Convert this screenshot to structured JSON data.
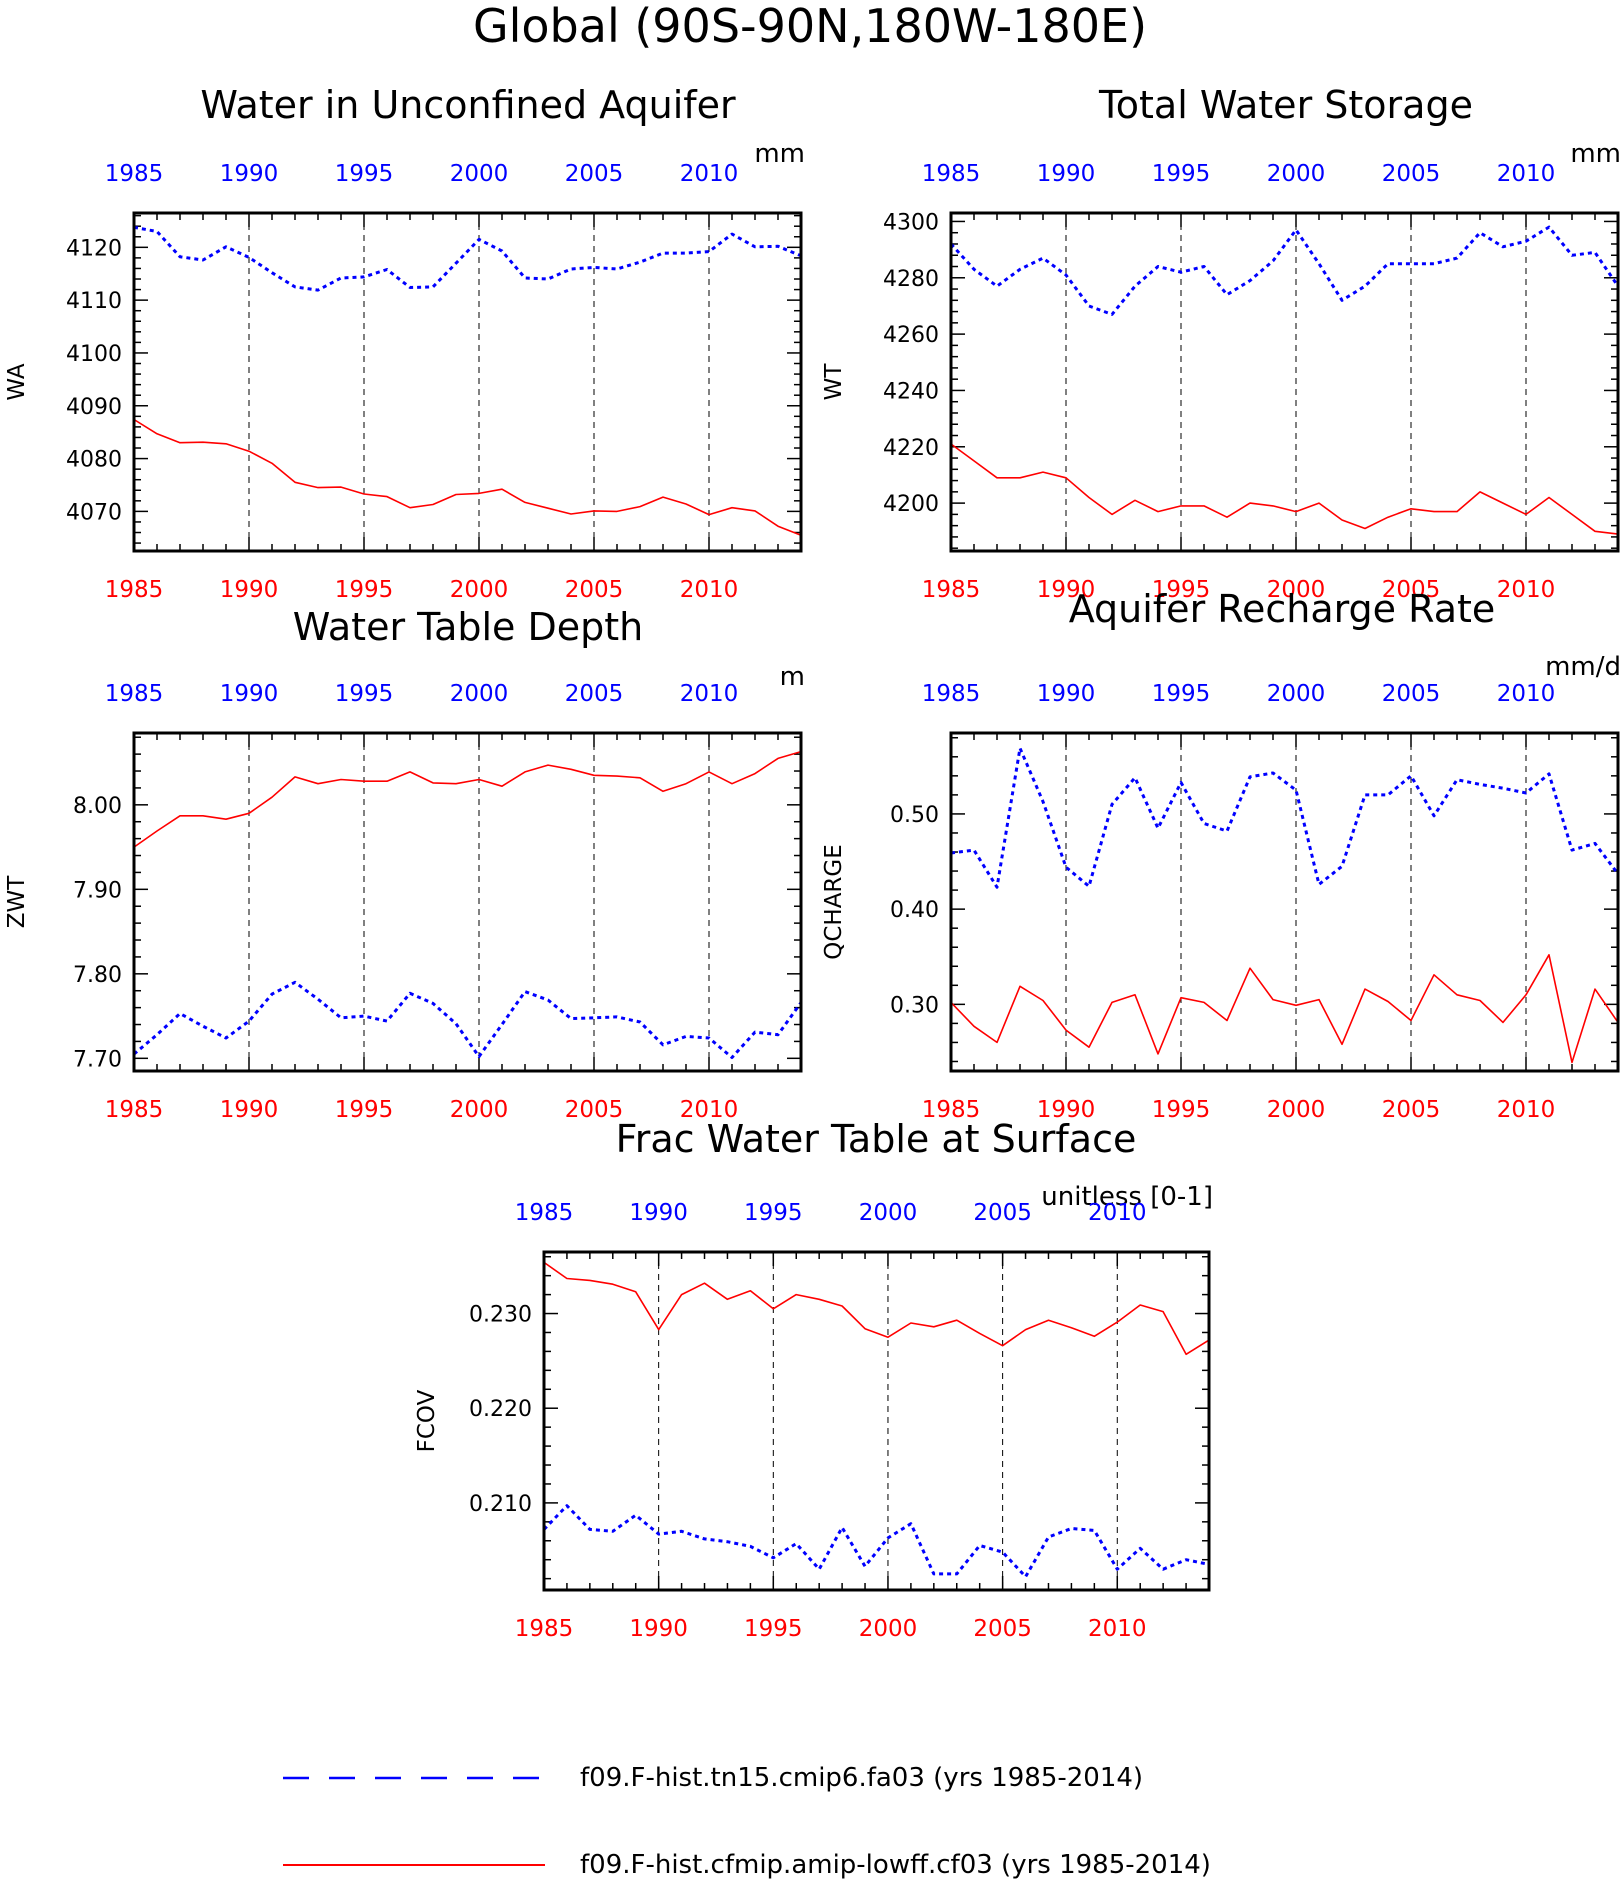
{
  "page_title": "Global (90S-90N,180W-180E)",
  "colors": {
    "series_a": "#0000ff",
    "series_b": "#ff0000",
    "frame": "#000000"
  },
  "legend": {
    "position": "bottom",
    "items": [
      {
        "label": "f09.F-hist.tn15.cmip6.fa03 (yrs 1985-2014)",
        "color": "#0000ff",
        "style": "dashed"
      },
      {
        "label": "f09.F-hist.cfmip.amip-lowff.cf03 (yrs 1985-2014)",
        "color": "#ff0000",
        "style": "solid"
      }
    ]
  },
  "chart_data": [
    {
      "type": "line",
      "title": "Water in Unconfined Aquifer",
      "ylabel": "WA",
      "units": "mm",
      "xlim": [
        1985,
        2014
      ],
      "ylim": [
        4062.5,
        4126.5
      ],
      "yticks": [
        4070,
        4080,
        4090,
        4100,
        4110,
        4120
      ],
      "yticklabels": [
        "4070",
        "4080",
        "4090",
        "4100",
        "4110",
        "4120"
      ],
      "xticks": [
        1985,
        1990,
        1995,
        2000,
        2005,
        2010
      ],
      "grid": "vertical-dashed",
      "x": [
        1985,
        1986,
        1987,
        1988,
        1989,
        1990,
        1991,
        1992,
        1993,
        1994,
        1995,
        1996,
        1997,
        1998,
        1999,
        2000,
        2001,
        2002,
        2003,
        2004,
        2005,
        2006,
        2007,
        2008,
        2009,
        2010,
        2011,
        2012,
        2013,
        2014
      ],
      "series": [
        {
          "color": "#0000ff",
          "style": "dashed",
          "values": [
            4123.8,
            4123.0,
            4118.2,
            4117.6,
            4120.1,
            4118.1,
            4115.2,
            4112.5,
            4111.9,
            4114.2,
            4114.4,
            4115.8,
            4112.4,
            4112.5,
            4117.0,
            4121.5,
            4119.3,
            4114.2,
            4114.0,
            4115.9,
            4116.2,
            4115.9,
            4117.2,
            4118.9,
            4118.9,
            4119.2,
            4122.5,
            4120.1,
            4120.2,
            4118.4
          ]
        },
        {
          "color": "#ff0000",
          "style": "solid",
          "values": [
            4087.4,
            4084.7,
            4083.0,
            4083.1,
            4082.8,
            4081.4,
            4079.1,
            4075.5,
            4074.5,
            4074.6,
            4073.3,
            4072.8,
            4070.7,
            4071.3,
            4073.2,
            4073.4,
            4074.2,
            4071.7,
            4070.6,
            4069.5,
            4070.1,
            4070.0,
            4070.9,
            4072.7,
            4071.4,
            4069.4,
            4070.7,
            4070.1,
            4067.2,
            4065.5
          ]
        }
      ]
    },
    {
      "type": "line",
      "title": "Total Water Storage",
      "ylabel": "WT",
      "units": "mm",
      "xlim": [
        1985,
        2014
      ],
      "ylim": [
        4183,
        4303
      ],
      "yticks": [
        4200,
        4220,
        4240,
        4260,
        4280,
        4300
      ],
      "yticklabels": [
        "4200",
        "4220",
        "4240",
        "4260",
        "4280",
        "4300"
      ],
      "xticks": [
        1985,
        1990,
        1995,
        2000,
        2005,
        2010
      ],
      "grid": "vertical-dashed",
      "x": [
        1985,
        1986,
        1987,
        1988,
        1989,
        1990,
        1991,
        1992,
        1993,
        1994,
        1995,
        1996,
        1997,
        1998,
        1999,
        2000,
        2001,
        2002,
        2003,
        2004,
        2005,
        2006,
        2007,
        2008,
        2009,
        2010,
        2011,
        2012,
        2013,
        2014
      ],
      "series": [
        {
          "color": "#0000ff",
          "style": "dashed",
          "values": [
            4292,
            4283,
            4277,
            4283,
            4287,
            4281,
            4270,
            4267,
            4277,
            4284,
            4282,
            4284,
            4274,
            4279,
            4286,
            4297,
            4285,
            4272,
            4277,
            4285,
            4285,
            4285,
            4287,
            4296,
            4291,
            4293,
            4298,
            4288,
            4289,
            4277
          ]
        },
        {
          "color": "#ff0000",
          "style": "solid",
          "values": [
            4221,
            4215,
            4209,
            4209,
            4211,
            4209,
            4202,
            4196,
            4201,
            4197,
            4199,
            4199,
            4195,
            4200,
            4199,
            4197,
            4200,
            4194,
            4191,
            4195,
            4198,
            4197,
            4197,
            4204,
            4200,
            4196,
            4202,
            4196,
            4190,
            4189
          ]
        }
      ]
    },
    {
      "type": "line",
      "title": "Water Table Depth",
      "ylabel": "ZWT",
      "units": "m",
      "xlim": [
        1985,
        2014
      ],
      "ylim": [
        7.685,
        8.085
      ],
      "yticks": [
        7.7,
        7.8,
        7.9,
        8.0
      ],
      "yticklabels": [
        "7.70",
        "7.80",
        "7.90",
        "8.00"
      ],
      "xticks": [
        1985,
        1990,
        1995,
        2000,
        2005,
        2010
      ],
      "grid": "vertical-dashed",
      "x": [
        1985,
        1986,
        1987,
        1988,
        1989,
        1990,
        1991,
        1992,
        1993,
        1994,
        1995,
        1996,
        1997,
        1998,
        1999,
        2000,
        2001,
        2002,
        2003,
        2004,
        2005,
        2006,
        2007,
        2008,
        2009,
        2010,
        2011,
        2012,
        2013,
        2014
      ],
      "series": [
        {
          "color": "#0000ff",
          "style": "dashed",
          "values": [
            7.705,
            7.728,
            7.753,
            7.738,
            7.724,
            7.744,
            7.776,
            7.79,
            7.77,
            7.748,
            7.75,
            7.744,
            7.777,
            7.765,
            7.741,
            7.702,
            7.74,
            7.779,
            7.769,
            7.747,
            7.748,
            7.749,
            7.743,
            7.716,
            7.726,
            7.724,
            7.701,
            7.731,
            7.728,
            7.766
          ]
        },
        {
          "color": "#ff0000",
          "style": "solid",
          "values": [
            7.95,
            7.969,
            7.987,
            7.987,
            7.983,
            7.99,
            8.009,
            8.033,
            8.025,
            8.03,
            8.028,
            8.028,
            8.039,
            8.026,
            8.025,
            8.03,
            8.022,
            8.039,
            8.047,
            8.042,
            8.035,
            8.034,
            8.032,
            8.016,
            8.025,
            8.039,
            8.025,
            8.037,
            8.055,
            8.063
          ]
        }
      ]
    },
    {
      "type": "line",
      "title": "Aquifer Recharge Rate",
      "ylabel": "QCHARGE",
      "units": "mm/d",
      "xlim": [
        1985,
        2014
      ],
      "ylim": [
        0.23,
        0.585
      ],
      "yticks": [
        0.3,
        0.4,
        0.5
      ],
      "yticklabels": [
        "0.30",
        "0.40",
        "0.50"
      ],
      "xticks": [
        1985,
        1990,
        1995,
        2000,
        2005,
        2010
      ],
      "grid": "vertical-dashed",
      "x": [
        1985,
        1986,
        1987,
        1988,
        1989,
        1990,
        1991,
        1992,
        1993,
        1994,
        1995,
        1996,
        1997,
        1998,
        1999,
        2000,
        2001,
        2002,
        2003,
        2004,
        2005,
        2006,
        2007,
        2008,
        2009,
        2010,
        2011,
        2012,
        2013,
        2014
      ],
      "series": [
        {
          "color": "#0000ff",
          "style": "dashed",
          "values": [
            0.459,
            0.462,
            0.423,
            0.569,
            0.513,
            0.444,
            0.424,
            0.51,
            0.538,
            0.485,
            0.533,
            0.49,
            0.482,
            0.539,
            0.543,
            0.525,
            0.426,
            0.445,
            0.52,
            0.52,
            0.54,
            0.498,
            0.536,
            0.531,
            0.527,
            0.522,
            0.542,
            0.462,
            0.469,
            0.437
          ]
        },
        {
          "color": "#ff0000",
          "style": "solid",
          "values": [
            0.302,
            0.277,
            0.26,
            0.319,
            0.304,
            0.273,
            0.255,
            0.302,
            0.31,
            0.248,
            0.307,
            0.302,
            0.283,
            0.338,
            0.305,
            0.299,
            0.305,
            0.258,
            0.316,
            0.303,
            0.283,
            0.331,
            0.31,
            0.304,
            0.281,
            0.31,
            0.352,
            0.239,
            0.316,
            0.281
          ]
        }
      ]
    },
    {
      "type": "line",
      "title": "Frac Water Table at Surface",
      "ylabel": "FCOV",
      "units": "unitless [0-1]",
      "xlim": [
        1985,
        2014
      ],
      "ylim": [
        0.2008,
        0.2365
      ],
      "yticks": [
        0.21,
        0.22,
        0.23
      ],
      "yticklabels": [
        "0.210",
        "0.220",
        "0.230"
      ],
      "xticks": [
        1985,
        1990,
        1995,
        2000,
        2005,
        2010
      ],
      "grid": "vertical-dashed",
      "x": [
        1985,
        1986,
        1987,
        1988,
        1989,
        1990,
        1991,
        1992,
        1993,
        1994,
        1995,
        1996,
        1997,
        1998,
        1999,
        2000,
        2001,
        2002,
        2003,
        2004,
        2005,
        2006,
        2007,
        2008,
        2009,
        2010,
        2011,
        2012,
        2013,
        2014
      ],
      "series": [
        {
          "color": "#0000ff",
          "style": "dashed",
          "values": [
            0.2072,
            0.2097,
            0.2072,
            0.207,
            0.2087,
            0.2067,
            0.207,
            0.2062,
            0.2059,
            0.2054,
            0.2042,
            0.2057,
            0.203,
            0.2074,
            0.2033,
            0.2063,
            0.2078,
            0.2025,
            0.2025,
            0.2055,
            0.2048,
            0.2022,
            0.2064,
            0.2073,
            0.2071,
            0.203,
            0.2052,
            0.203,
            0.204,
            0.2035
          ]
        },
        {
          "color": "#ff0000",
          "style": "solid",
          "values": [
            0.2354,
            0.2337,
            0.2335,
            0.2331,
            0.2323,
            0.2283,
            0.232,
            0.2332,
            0.2315,
            0.2324,
            0.2305,
            0.232,
            0.2315,
            0.2308,
            0.2284,
            0.2275,
            0.229,
            0.2286,
            0.2293,
            0.2279,
            0.2266,
            0.2283,
            0.2293,
            0.2285,
            0.2276,
            0.2291,
            0.2309,
            0.2302,
            0.2257,
            0.2272
          ]
        }
      ]
    }
  ]
}
